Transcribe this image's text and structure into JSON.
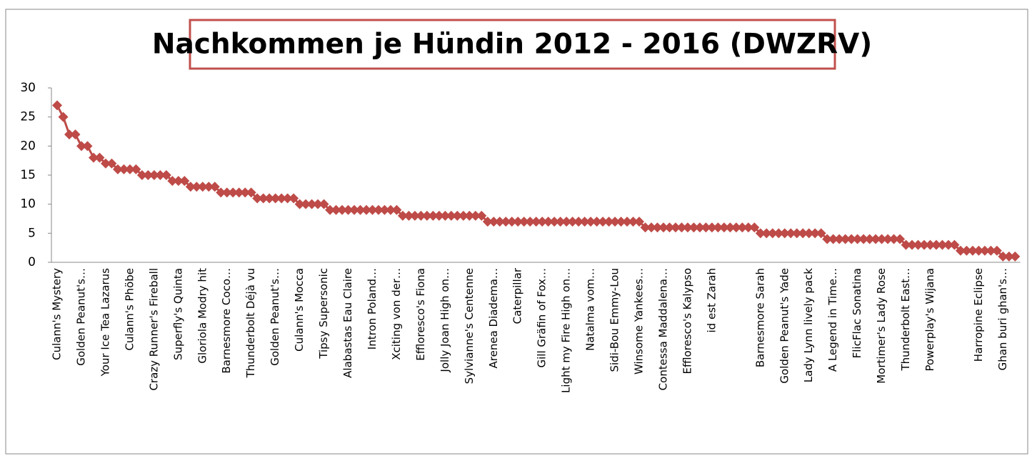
{
  "chart_data": {
    "type": "line",
    "title": "Nachkommen je Hündin 2012 - 2016 (DWZRV)",
    "color": "#be4b48",
    "categories": [
      "Culann's Mystery",
      null,
      null,
      null,
      "Golden Peanut's…",
      null,
      null,
      null,
      "Your Ice Tea Lazarus",
      null,
      null,
      null,
      "Culann's Phöbe",
      null,
      null,
      null,
      "Crazy Runner's Fireball",
      null,
      null,
      null,
      "Superfly's Quinta",
      null,
      null,
      null,
      "Gloriola Modry hit",
      null,
      null,
      null,
      "Barnesmore Coco…",
      null,
      null,
      null,
      "Thunderbolt Déjà vu",
      null,
      null,
      null,
      "Golden Peanut's…",
      null,
      null,
      null,
      "Culann's Mocca",
      null,
      null,
      null,
      "Tipsy Supersonic",
      null,
      null,
      null,
      "Alabastas Eau Claire",
      null,
      null,
      null,
      "Intron Poland…",
      null,
      null,
      null,
      "Xciting von der…",
      null,
      null,
      null,
      "Effloresco's Fiona",
      null,
      null,
      null,
      "Jolly Joan High on…",
      null,
      null,
      null,
      "Sylvianne's Centenne",
      null,
      null,
      null,
      "Arenea Diadema…",
      null,
      null,
      null,
      "Caterpillar",
      null,
      null,
      null,
      "Gill Gräfin of Fox…",
      null,
      null,
      null,
      "Light my Fire High on…",
      null,
      null,
      null,
      "Natalma vom…",
      null,
      null,
      null,
      "Sidi-Bou Emmy-Lou",
      null,
      null,
      null,
      "Winsome Yankees…",
      null,
      null,
      null,
      "Contessa Maddalena…",
      null,
      null,
      null,
      "Effloresco's Kalypso",
      null,
      null,
      null,
      "id est Zarah",
      null,
      null,
      null,
      null,
      null,
      null,
      null,
      "Barnesmore Sarah",
      null,
      null,
      null,
      "Golden Peanut's Yade",
      null,
      null,
      null,
      "Lady Lynn lively pack",
      null,
      null,
      null,
      "A Legend in Time…",
      null,
      null,
      null,
      "FlicFlac Sonatina",
      null,
      null,
      null,
      "Mortimer's Lady Rose",
      null,
      null,
      null,
      "Thunderbolt East…",
      null,
      null,
      null,
      "Powerplay's Wijana",
      null,
      null,
      null,
      null,
      null,
      null,
      null,
      "Harropine Eclipse",
      null,
      null,
      null,
      "Ghan buri ghan's…",
      null,
      null
    ],
    "values": [
      27,
      25,
      22,
      22,
      20,
      20,
      18,
      18,
      17,
      17,
      16,
      16,
      16,
      16,
      15,
      15,
      15,
      15,
      15,
      14,
      14,
      14,
      13,
      13,
      13,
      13,
      13,
      12,
      12,
      12,
      12,
      12,
      12,
      11,
      11,
      11,
      11,
      11,
      11,
      11,
      10,
      10,
      10,
      10,
      10,
      9,
      9,
      9,
      9,
      9,
      9,
      9,
      9,
      9,
      9,
      9,
      9,
      8,
      8,
      8,
      8,
      8,
      8,
      8,
      8,
      8,
      8,
      8,
      8,
      8,
      8,
      7,
      7,
      7,
      7,
      7,
      7,
      7,
      7,
      7,
      7,
      7,
      7,
      7,
      7,
      7,
      7,
      7,
      7,
      7,
      7,
      7,
      7,
      7,
      7,
      7,
      7,
      6,
      6,
      6,
      6,
      6,
      6,
      6,
      6,
      6,
      6,
      6,
      6,
      6,
      6,
      6,
      6,
      6,
      6,
      6,
      5,
      5,
      5,
      5,
      5,
      5,
      5,
      5,
      5,
      5,
      5,
      4,
      4,
      4,
      4,
      4,
      4,
      4,
      4,
      4,
      4,
      4,
      4,
      4,
      3,
      3,
      3,
      3,
      3,
      3,
      3,
      3,
      3,
      2,
      2,
      2,
      2,
      2,
      2,
      2,
      1,
      1,
      1
    ],
    "ylim": [
      0,
      30
    ],
    "yticks": [
      0,
      5,
      10,
      15,
      20,
      25,
      30
    ],
    "grid": false
  }
}
